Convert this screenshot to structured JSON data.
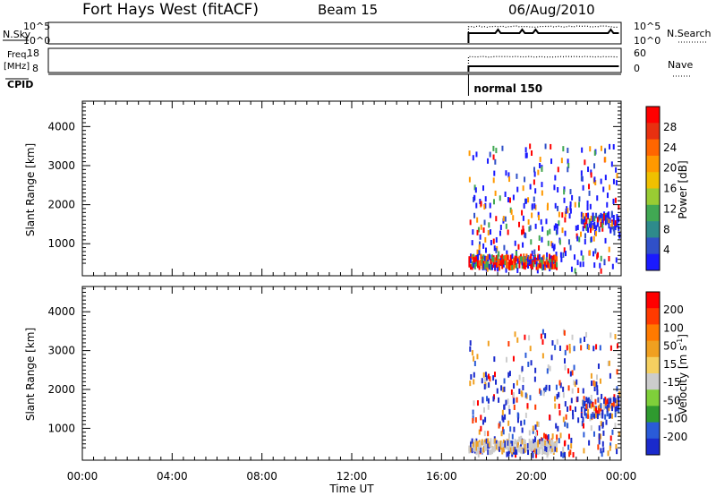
{
  "header": {
    "title": "Fort Hays West (fitACF)",
    "beam": "Beam 15",
    "date": "06/Aug/2010"
  },
  "strips": {
    "nsky": {
      "label": "N.Sky",
      "ticks": [
        "10^5",
        "10^0"
      ],
      "right_label": "N.Search",
      "right_ticks": [
        "10^5",
        "10^0"
      ]
    },
    "freq": {
      "label": "Freq.",
      "unit": "[MHz]",
      "ticks": [
        "18",
        "8"
      ],
      "right_label": "Nave",
      "right_ticks": [
        "60",
        "0"
      ]
    },
    "cpid": {
      "label": "CPID",
      "mode_label": "normal 150",
      "start_hour": 17.2
    }
  },
  "chart_data": [
    {
      "type": "heatmap",
      "name": "power",
      "ylabel": "Slant Range [km]",
      "yticks": [
        1000,
        2000,
        3000,
        4000
      ],
      "ylim": [
        180,
        4650
      ],
      "xlim": [
        0,
        24
      ],
      "data_start_hour": 17.2,
      "colorbar_label": "Power [dB]",
      "colorbar_ticks": [
        "4",
        "8",
        "12",
        "16",
        "20",
        "24",
        "28"
      ],
      "colorbar_colors": [
        "#1a1aff",
        "#3050c8",
        "#2e8b8b",
        "#41a853",
        "#99cc33",
        "#f0c000",
        "#ff9900",
        "#ff6600",
        "#e83010",
        "#ff0000"
      ]
    },
    {
      "type": "heatmap",
      "name": "velocity",
      "ylabel": "Slant Range [km]",
      "yticks": [
        1000,
        2000,
        3000,
        4000
      ],
      "ylim": [
        180,
        4650
      ],
      "xlim": [
        0,
        24
      ],
      "data_start_hour": 17.2,
      "colorbar_label": "Velocity [m s",
      "colorbar_label_sup": "-1",
      "colorbar_label_close": "]",
      "colorbar_ticks": [
        "200",
        "100",
        "50",
        "15",
        "-15",
        "-50",
        "-100",
        "-200"
      ],
      "colorbar_colors": [
        "#1a2acc",
        "#2a5bd8",
        "#2f9a2f",
        "#7fd03a",
        "#cccccc",
        "#f5d060",
        "#f0a020",
        "#ff7a00",
        "#ff3a00",
        "#ff0000"
      ]
    }
  ],
  "x_axis": {
    "ticks": [
      "00:00",
      "04:00",
      "08:00",
      "12:00",
      "16:00",
      "20:00",
      "00:00"
    ],
    "label": "Time UT"
  }
}
